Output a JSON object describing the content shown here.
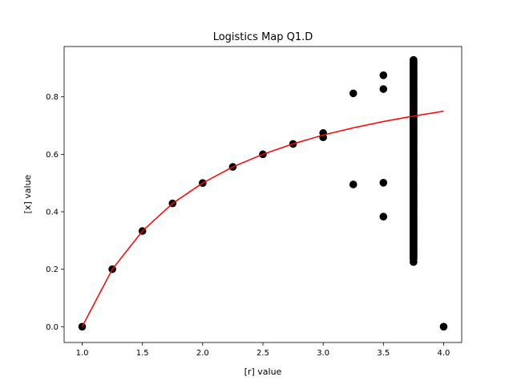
{
  "chart_data": {
    "type": "scatter",
    "title": "Logistics Map Q1.D",
    "xlabel": "[r] value",
    "ylabel": "[x] value",
    "xlim": [
      0.85,
      4.15
    ],
    "ylim": [
      -0.055,
      0.975
    ],
    "xticks": [
      "1.0",
      "1.5",
      "2.0",
      "2.5",
      "3.0",
      "3.5",
      "4.0"
    ],
    "yticks": [
      "0.0",
      "0.2",
      "0.4",
      "0.6",
      "0.8"
    ],
    "grid": false,
    "legend": "none",
    "scatter_color": "#000000",
    "line_color": "#ff0000",
    "points": [
      {
        "x": 1.0,
        "y": 0.0
      },
      {
        "x": 1.25,
        "y": 0.2
      },
      {
        "x": 1.5,
        "y": 0.333
      },
      {
        "x": 1.75,
        "y": 0.429
      },
      {
        "x": 2.0,
        "y": 0.5
      },
      {
        "x": 2.25,
        "y": 0.556
      },
      {
        "x": 2.5,
        "y": 0.6
      },
      {
        "x": 2.75,
        "y": 0.636
      },
      {
        "x": 3.0,
        "y": 0.659
      },
      {
        "x": 3.0,
        "y": 0.674
      },
      {
        "x": 3.25,
        "y": 0.495
      },
      {
        "x": 3.25,
        "y": 0.812
      },
      {
        "x": 3.5,
        "y": 0.383
      },
      {
        "x": 3.5,
        "y": 0.501
      },
      {
        "x": 3.5,
        "y": 0.827
      },
      {
        "x": 3.5,
        "y": 0.875
      },
      {
        "x": 4.0,
        "y": 0.0
      }
    ],
    "band": {
      "x": 3.75,
      "ymin": 0.225,
      "ymax": 0.938
    },
    "line": {
      "name": "",
      "x": [
        1.0,
        1.25,
        1.5,
        1.75,
        2.0,
        2.25,
        2.5,
        2.75,
        3.0,
        3.25,
        3.5,
        3.75,
        4.0
      ],
      "y": [
        0.0,
        0.2,
        0.333,
        0.429,
        0.5,
        0.556,
        0.6,
        0.636,
        0.667,
        0.692,
        0.714,
        0.733,
        0.75
      ]
    }
  }
}
